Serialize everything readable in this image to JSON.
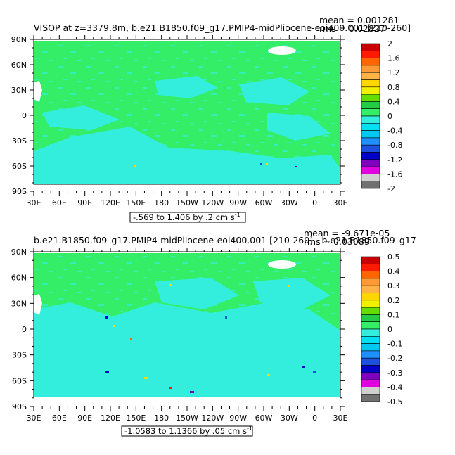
{
  "colors": {
    "land": "#ffffff",
    "ocean_base": "#33ee66",
    "ocean_low": "#33eedd"
  },
  "panels": [
    {
      "title": "VISOP at z=3379.8m, b.e21.B1850.f09_g17.PMIP4-midPliocene-eoi400.001 [210-260]",
      "mean": "mean = 0.001281",
      "rms": "rms = 0.02827",
      "range_text": "-.569 to 1.406 by .2 cm s",
      "range_sup": "-1",
      "legend_labels": [
        "2",
        "1.6",
        "1.2",
        "0.8",
        "0.4",
        "0",
        "-0.4",
        "-0.8",
        "-1.2",
        "-1.6",
        "-2"
      ],
      "legend_colors": [
        "#c80000",
        "#ff1a00",
        "#ff6600",
        "#ff9933",
        "#ffb347",
        "#ffd700",
        "#f0f000",
        "#66dd00",
        "#22cc44",
        "#33ee66",
        "#33eedd",
        "#00e0f0",
        "#00c8f0",
        "#1e90ff",
        "#1e50e0",
        "#0000c8",
        "#8000c0",
        "#e000e0",
        "#d0d0d0",
        "#707070"
      ]
    },
    {
      "title": "b.e21.B1850.f09_g17.PMIP4-midPliocene-eoi400.001 [210-260] - b.e21.B1850.f09_g17",
      "mean": "mean = -9.671e-05",
      "rms": "rms = 0.03089",
      "range_text": "-1.0583 to 1.1366 by .05 cm s",
      "range_sup": "-1",
      "legend_labels": [
        "0.5",
        "0.4",
        "0.3",
        "0.2",
        "0.1",
        "0",
        "-0.1",
        "-0.2",
        "-0.3",
        "-0.4",
        "-0.5"
      ],
      "legend_colors": [
        "#c80000",
        "#ff1a00",
        "#ff6600",
        "#ff9933",
        "#ffb347",
        "#ffd700",
        "#f0f000",
        "#66dd00",
        "#22cc44",
        "#33ee66",
        "#33eedd",
        "#00e0f0",
        "#00c8f0",
        "#1e90ff",
        "#1e50e0",
        "#0000c8",
        "#8000c0",
        "#e000e0",
        "#d0d0d0",
        "#707070"
      ]
    }
  ],
  "lat_labels": [
    "90N",
    "60N",
    "30N",
    "0",
    "30S",
    "60S",
    "90S"
  ],
  "lon_labels": [
    "30E",
    "60E",
    "90E",
    "120E",
    "150E",
    "180",
    "150W",
    "120W",
    "90W",
    "60W",
    "30W",
    "0",
    "30E"
  ]
}
